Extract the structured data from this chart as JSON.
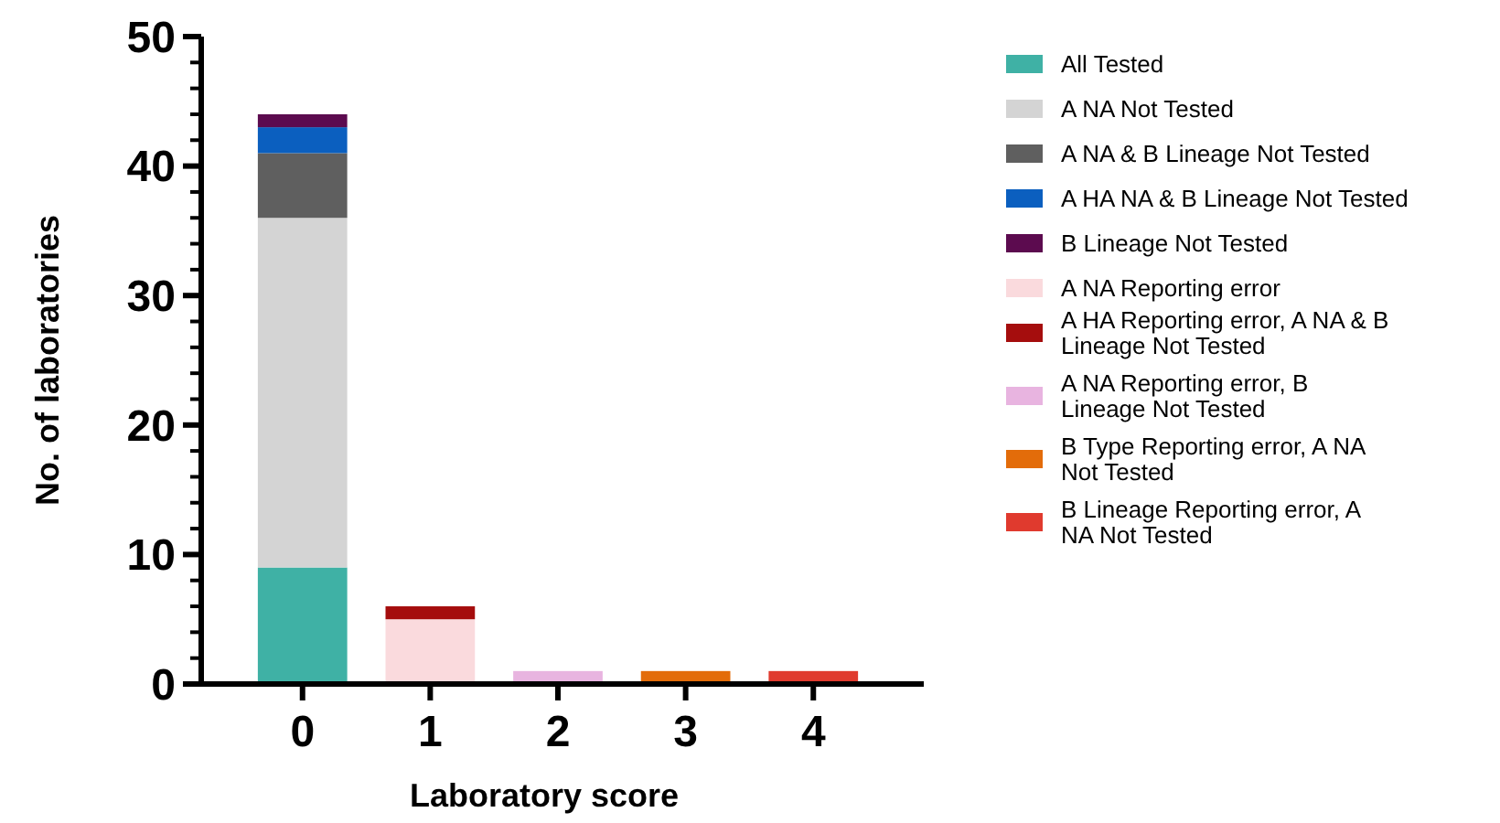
{
  "chart_data": {
    "type": "bar",
    "stacked": true,
    "xlabel": "Laboratory score",
    "ylabel": "No. of laboratories",
    "categories": [
      "0",
      "1",
      "2",
      "3",
      "4"
    ],
    "ylim": [
      0,
      50
    ],
    "yticks": [
      0,
      {
        "value": 2,
        "label": null
      },
      {
        "value": 4,
        "label": null
      },
      {
        "value": 6,
        "label": null
      },
      {
        "value": 8,
        "label": null
      },
      10,
      {
        "value": 12,
        "label": null
      },
      {
        "value": 14,
        "label": null
      },
      {
        "value": 16,
        "label": null
      },
      {
        "value": 18,
        "label": null
      },
      20,
      {
        "value": 22,
        "label": null
      },
      {
        "value": 24,
        "label": null
      },
      {
        "value": 26,
        "label": null
      },
      {
        "value": 28,
        "label": null
      },
      30,
      {
        "value": 32,
        "label": null
      },
      {
        "value": 34,
        "label": null
      },
      {
        "value": 36,
        "label": null
      },
      {
        "value": 38,
        "label": null
      },
      40,
      {
        "value": 42,
        "label": null
      },
      {
        "value": 44,
        "label": null
      },
      {
        "value": 46,
        "label": null
      },
      {
        "value": 48,
        "label": null
      },
      50
    ],
    "grid": false,
    "legend": "right",
    "series": [
      {
        "name": "All Tested",
        "color": "#3fb1a5",
        "values": [
          9,
          null,
          null,
          null,
          null
        ]
      },
      {
        "name": "A NA Not Tested",
        "color": "#d4d4d4",
        "values": [
          27,
          null,
          null,
          null,
          null
        ]
      },
      {
        "name": "A NA & B Lineage Not Tested",
        "color": "#5f5f5f",
        "values": [
          5,
          null,
          null,
          null,
          null
        ]
      },
      {
        "name": "A HA NA & B Lineage Not Tested",
        "color": "#0b5fbf",
        "values": [
          2,
          null,
          null,
          null,
          null
        ]
      },
      {
        "name": "B Lineage Not Tested",
        "color": "#5c0b4f",
        "values": [
          1,
          null,
          null,
          null,
          null
        ]
      },
      {
        "name": "A NA Reporting error",
        "color": "#fadadd",
        "values": [
          null,
          5,
          null,
          null,
          null
        ]
      },
      {
        "name": "A HA Reporting error, A NA & B Lineage Not Tested",
        "color": "#a50d0d",
        "values": [
          null,
          1,
          null,
          null,
          null
        ]
      },
      {
        "name": "A NA Reporting error, B Lineage Not Tested",
        "color": "#e8b4e0",
        "values": [
          null,
          null,
          1,
          null,
          null
        ]
      },
      {
        "name": "B Type Reporting error, A NA Not Tested",
        "color": "#e36c0a",
        "values": [
          null,
          null,
          null,
          1,
          null
        ]
      },
      {
        "name": "B Lineage Reporting error, A NA Not Tested",
        "color": "#e03a2e",
        "values": [
          null,
          null,
          null,
          null,
          1
        ]
      }
    ]
  }
}
